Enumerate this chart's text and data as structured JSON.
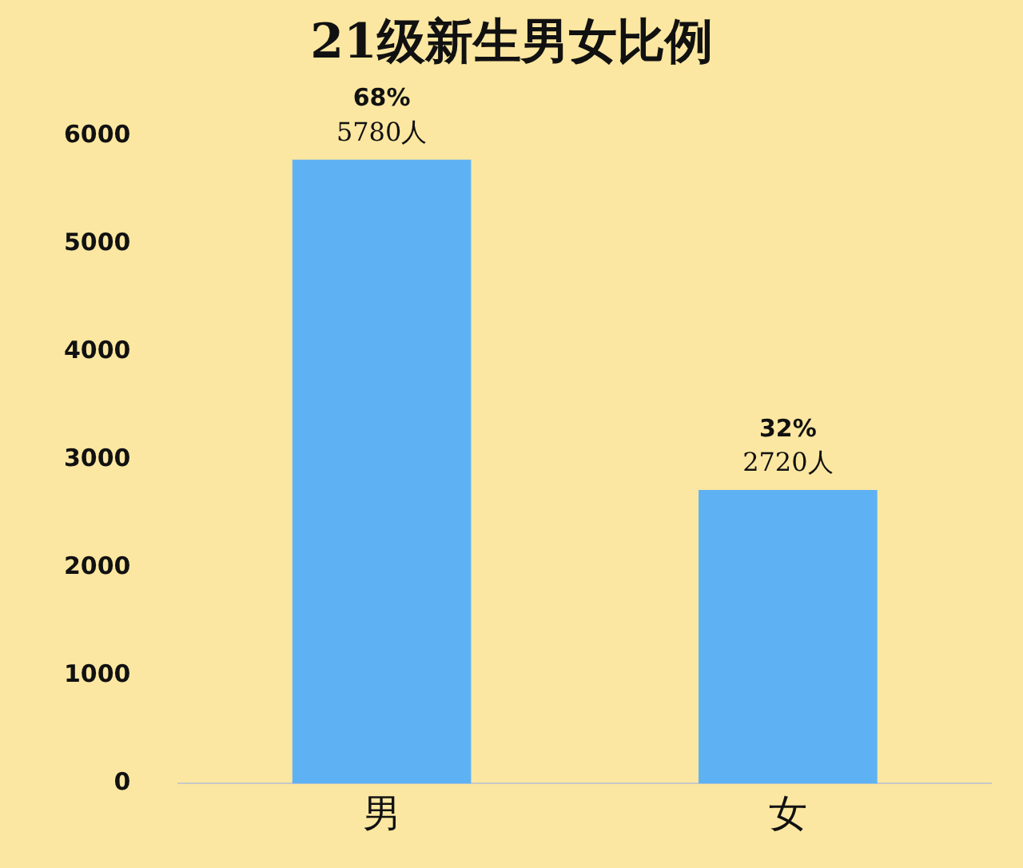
{
  "chart_data": {
    "type": "bar",
    "title": "21级新生男女比例",
    "categories": [
      "男",
      "女"
    ],
    "values": [
      5780,
      2720
    ],
    "value_labels": [
      "68%\n5780人",
      "32%\n2720人"
    ],
    "color": "#5eb2f4",
    "ylim": [
      0,
      6000
    ],
    "yticks": [
      0,
      1000,
      2000,
      3000,
      4000,
      5000,
      6000
    ],
    "grid": false,
    "legend": false
  }
}
